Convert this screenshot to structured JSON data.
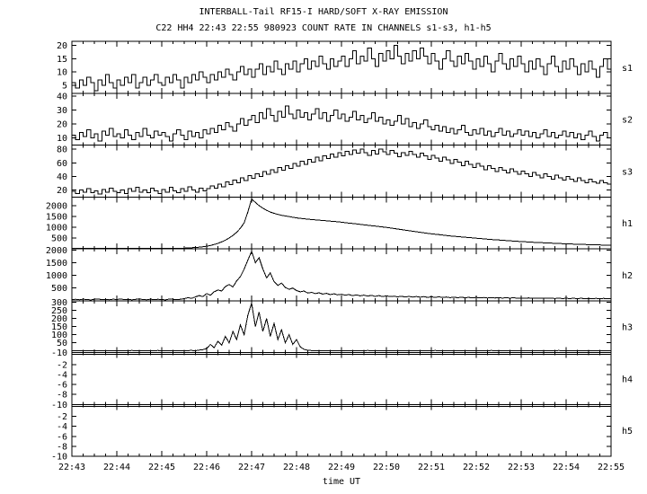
{
  "chart_data": {
    "type": "line",
    "title": "INTERBALL-Tail RF15-I HARD/SOFT X-RAY EMISSION",
    "subtitle": "C22 HH4 22:43 22:55 980923  COUNT RATE IN CHANNELS s1-s3, h1-h5",
    "xlabel": "time UT",
    "ylabel": "",
    "grid": false,
    "legend": "none",
    "x_tick_labels": [
      "22:43",
      "22:44",
      "22:45",
      "22:46",
      "22:47",
      "22:48",
      "22:49",
      "22:50",
      "22:51",
      "22:52",
      "22:53",
      "22:54",
      "22:55"
    ],
    "panels": [
      {
        "name": "s1",
        "style": "step",
        "ylim": [
          2,
          21.5
        ],
        "yticks": [
          20,
          15,
          10,
          5
        ],
        "values": [
          6,
          4,
          7,
          5,
          8,
          6,
          3,
          7,
          5,
          9,
          6,
          4,
          7,
          5,
          8,
          6,
          9,
          4,
          6,
          8,
          5,
          7,
          9,
          6,
          5,
          8,
          6,
          9,
          7,
          4,
          8,
          6,
          9,
          7,
          10,
          8,
          6,
          9,
          7,
          10,
          8,
          11,
          9,
          7,
          10,
          12,
          9,
          11,
          8,
          11,
          13,
          9,
          12,
          10,
          14,
          11,
          9,
          13,
          11,
          14,
          10,
          13,
          15,
          11,
          14,
          12,
          16,
          13,
          11,
          15,
          12,
          14,
          16,
          12,
          15,
          18,
          13,
          16,
          14,
          19,
          15,
          12,
          17,
          14,
          18,
          15,
          20,
          16,
          13,
          17,
          14,
          18,
          15,
          19,
          16,
          13,
          17,
          14,
          11,
          15,
          18,
          14,
          12,
          16,
          13,
          17,
          14,
          11,
          15,
          12,
          16,
          13,
          10,
          14,
          17,
          13,
          11,
          15,
          12,
          16,
          13,
          10,
          14,
          11,
          15,
          12,
          9,
          13,
          16,
          12,
          10,
          14,
          11,
          15,
          12,
          9,
          13,
          10,
          14,
          11,
          8,
          12,
          15,
          11,
          9
        ]
      },
      {
        "name": "s2",
        "style": "step",
        "ylim": [
          5,
          42
        ],
        "yticks": [
          40,
          30,
          20,
          10
        ],
        "values": [
          12,
          9,
          14,
          11,
          16,
          10,
          13,
          8,
          15,
          12,
          17,
          11,
          13,
          10,
          16,
          12,
          9,
          14,
          11,
          17,
          12,
          10,
          15,
          12,
          14,
          11,
          8,
          13,
          16,
          12,
          9,
          15,
          11,
          14,
          10,
          16,
          13,
          17,
          14,
          19,
          16,
          21,
          18,
          15,
          20,
          24,
          19,
          23,
          26,
          21,
          28,
          24,
          31,
          26,
          22,
          29,
          25,
          33,
          27,
          24,
          30,
          25,
          28,
          23,
          27,
          31,
          24,
          28,
          22,
          26,
          30,
          24,
          27,
          22,
          25,
          29,
          23,
          26,
          21,
          24,
          28,
          22,
          25,
          20,
          23,
          19,
          22,
          26,
          20,
          24,
          18,
          21,
          17,
          20,
          23,
          18,
          16,
          19,
          15,
          18,
          14,
          17,
          13,
          16,
          19,
          14,
          12,
          16,
          13,
          17,
          12,
          15,
          11,
          14,
          17,
          12,
          15,
          11,
          13,
          16,
          12,
          15,
          11,
          14,
          10,
          13,
          16,
          11,
          14,
          10,
          12,
          15,
          11,
          14,
          10,
          13,
          9,
          12,
          15,
          11,
          8,
          12,
          14,
          10,
          13
        ]
      },
      {
        "name": "s3",
        "style": "step",
        "ylim": [
          10,
          86
        ],
        "yticks": [
          80,
          60,
          40,
          20
        ],
        "values": [
          18,
          15,
          20,
          17,
          22,
          16,
          19,
          14,
          21,
          17,
          23,
          18,
          16,
          20,
          15,
          22,
          18,
          24,
          17,
          20,
          16,
          23,
          19,
          15,
          21,
          17,
          24,
          19,
          16,
          22,
          18,
          25,
          20,
          17,
          23,
          19,
          22,
          26,
          23,
          29,
          25,
          32,
          28,
          35,
          31,
          38,
          34,
          41,
          37,
          44,
          40,
          47,
          43,
          50,
          46,
          53,
          49,
          56,
          52,
          59,
          55,
          62,
          58,
          65,
          61,
          68,
          63,
          70,
          66,
          73,
          68,
          75,
          70,
          77,
          72,
          79,
          74,
          80,
          75,
          71,
          78,
          73,
          80,
          76,
          72,
          78,
          74,
          69,
          75,
          71,
          77,
          72,
          68,
          74,
          70,
          65,
          71,
          67,
          62,
          68,
          64,
          59,
          65,
          61,
          56,
          62,
          58,
          53,
          59,
          55,
          50,
          56,
          52,
          47,
          53,
          49,
          45,
          51,
          47,
          43,
          48,
          44,
          40,
          46,
          42,
          38,
          44,
          40,
          36,
          42,
          38,
          35,
          40,
          36,
          33,
          38,
          34,
          31,
          36,
          32,
          30,
          34,
          31,
          29,
          32
        ]
      },
      {
        "name": "h1",
        "style": "line",
        "ylim": [
          0,
          2400
        ],
        "yticks": [
          2000,
          1500,
          1000,
          500
        ],
        "values": [
          20,
          18,
          22,
          19,
          21,
          17,
          20,
          23,
          19,
          21,
          18,
          22,
          20,
          17,
          21,
          19,
          23,
          20,
          18,
          21,
          19,
          22,
          18,
          20,
          21,
          17,
          20,
          22,
          19,
          21,
          30,
          38,
          48,
          60,
          75,
          95,
          120,
          155,
          200,
          250,
          320,
          400,
          500,
          620,
          760,
          950,
          1200,
          1700,
          2300,
          2150,
          2000,
          1880,
          1780,
          1700,
          1640,
          1590,
          1550,
          1520,
          1490,
          1460,
          1430,
          1410,
          1390,
          1370,
          1355,
          1340,
          1325,
          1310,
          1295,
          1280,
          1265,
          1250,
          1230,
          1210,
          1190,
          1170,
          1150,
          1130,
          1110,
          1090,
          1070,
          1050,
          1030,
          1010,
          990,
          965,
          940,
          915,
          890,
          865,
          840,
          815,
          790,
          765,
          740,
          715,
          695,
          675,
          655,
          635,
          615,
          595,
          580,
          565,
          550,
          535,
          520,
          505,
          490,
          475,
          460,
          445,
          430,
          418,
          406,
          394,
          382,
          370,
          358,
          347,
          336,
          325,
          315,
          305,
          295,
          286,
          277,
          268,
          260,
          252,
          244,
          237,
          230,
          223,
          216,
          210,
          204,
          198,
          192,
          187,
          182,
          177,
          172,
          168,
          164
        ]
      },
      {
        "name": "h2",
        "style": "line",
        "ylim": [
          0,
          2050
        ],
        "yticks": [
          2000,
          1500,
          1000,
          500
        ],
        "values": [
          40,
          55,
          35,
          60,
          45,
          30,
          50,
          65,
          40,
          55,
          35,
          60,
          45,
          70,
          40,
          55,
          30,
          50,
          65,
          45,
          35,
          60,
          40,
          55,
          45,
          30,
          65,
          50,
          40,
          55,
          80,
          120,
          90,
          150,
          200,
          160,
          280,
          220,
          350,
          420,
          380,
          560,
          640,
          540,
          780,
          950,
          1250,
          1600,
          1950,
          1500,
          1700,
          1250,
          900,
          1100,
          750,
          600,
          700,
          520,
          450,
          500,
          400,
          350,
          380,
          300,
          330,
          280,
          310,
          260,
          290,
          240,
          270,
          230,
          250,
          220,
          240,
          200,
          230,
          190,
          220,
          180,
          210,
          170,
          200,
          160,
          190,
          160,
          180,
          150,
          175,
          145,
          170,
          140,
          165,
          135,
          160,
          130,
          155,
          130,
          150,
          125,
          145,
          120,
          140,
          115,
          135,
          115,
          130,
          110,
          130,
          110,
          125,
          105,
          120,
          105,
          120,
          100,
          115,
          100,
          115,
          95,
          110,
          95,
          110,
          90,
          105,
          90,
          105,
          90,
          100,
          85,
          100,
          85,
          95,
          85,
          95,
          80,
          95,
          80,
          90,
          80,
          90,
          75,
          90,
          75,
          85
        ]
      },
      {
        "name": "h3",
        "style": "line",
        "ylim": [
          -10,
          310
        ],
        "yticks": [
          300,
          250,
          200,
          150,
          100,
          50,
          -10
        ],
        "values": [
          1,
          2,
          1,
          0,
          2,
          1,
          3,
          1,
          0,
          2,
          1,
          2,
          1,
          0,
          2,
          1,
          3,
          1,
          2,
          0,
          1,
          2,
          1,
          3,
          0,
          1,
          2,
          1,
          0,
          2,
          1,
          2,
          3,
          1,
          5,
          8,
          15,
          40,
          20,
          60,
          35,
          90,
          50,
          120,
          70,
          160,
          100,
          220,
          295,
          150,
          240,
          120,
          200,
          90,
          170,
          70,
          130,
          50,
          100,
          40,
          70,
          25,
          10,
          4,
          2,
          1,
          2,
          0,
          1,
          2,
          1,
          0,
          2,
          1,
          2,
          1,
          0,
          2,
          1,
          3,
          1,
          0,
          2,
          1,
          2,
          0,
          1,
          2,
          1,
          0,
          2,
          1,
          2,
          1,
          0,
          2,
          1,
          3,
          1,
          0,
          2,
          1,
          2,
          0,
          1,
          2,
          1,
          2,
          1,
          0,
          2,
          1,
          3,
          1,
          0,
          2,
          1,
          2,
          0,
          1,
          2,
          1,
          0,
          2,
          1,
          2,
          1,
          0,
          2,
          1,
          3,
          1,
          0,
          2,
          1,
          2,
          0,
          1,
          2,
          1,
          0,
          2,
          1,
          2,
          1
        ]
      },
      {
        "name": "h4",
        "style": "line",
        "ylim": [
          -10,
          0.4
        ],
        "yticks": [
          -2,
          -4,
          -6,
          -8,
          -10
        ],
        "constant": 0
      },
      {
        "name": "h5",
        "style": "line",
        "ylim": [
          -10,
          0.4
        ],
        "yticks": [
          -2,
          -4,
          -6,
          -8,
          -10
        ],
        "constant": 0
      }
    ]
  }
}
